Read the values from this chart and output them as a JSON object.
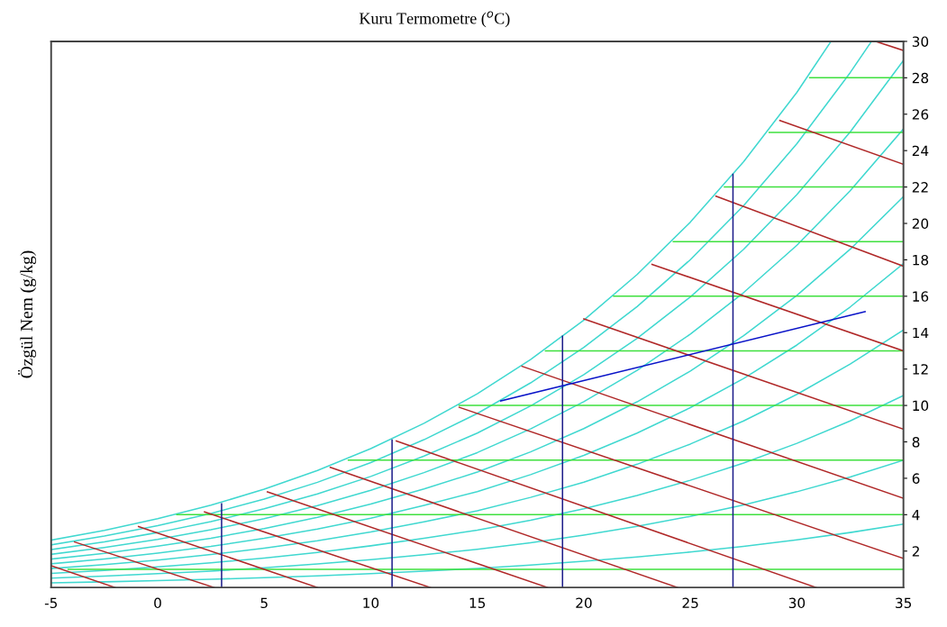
{
  "chart_data": {
    "type": "line",
    "title": "Kuru Termometre ($^{o}$C)",
    "ylabel": "Özgül Nem (g/kg)",
    "xlim": [
      -5,
      35
    ],
    "ylim": [
      0,
      30
    ],
    "xticks": [
      -5,
      0,
      5,
      10,
      15,
      20,
      25,
      30,
      35
    ],
    "yticks": [
      2,
      4,
      6,
      8,
      10,
      12,
      14,
      16,
      18,
      20,
      22,
      24,
      26,
      28,
      30
    ],
    "grid": false,
    "marker": "none",
    "line_style": "solid",
    "series": [
      {
        "color": "#40d8d0",
        "x": [
          -5,
          -2.5,
          0,
          2.5,
          5,
          7.5,
          10,
          12.5,
          15,
          17.5,
          20,
          22.5,
          25,
          27.5,
          30,
          31.6
        ],
        "values": [
          2.6,
          3.14,
          3.78,
          4.52,
          5.4,
          6.43,
          7.63,
          9.02,
          10.64,
          12.52,
          14.69,
          17.19,
          20.07,
          23.39,
          27.2,
          30
        ]
      },
      {
        "color": "#40d8d0",
        "x": [
          -5,
          -2.5,
          0,
          2.5,
          5,
          7.5,
          10,
          12.5,
          15,
          17.5,
          20,
          22.5,
          25,
          27.5,
          30,
          32.5,
          33.5
        ],
        "values": [
          2.34,
          2.83,
          3.4,
          4.07,
          4.86,
          5.78,
          6.86,
          8.12,
          9.56,
          11.24,
          13.19,
          15.43,
          18.01,
          20.98,
          24.38,
          28.28,
          30
        ]
      },
      {
        "color": "#40d8d0",
        "x": [
          -5,
          -2.5,
          0,
          2.5,
          5,
          7.5,
          10,
          12.5,
          15,
          17.5,
          20,
          22.5,
          25,
          27.5,
          30,
          32.5,
          35
        ],
        "values": [
          2.08,
          2.51,
          3.02,
          3.62,
          4.32,
          5.14,
          6.1,
          7.22,
          8.48,
          9.97,
          11.69,
          13.68,
          15.96,
          18.58,
          21.58,
          25.02,
          28.95
        ]
      },
      {
        "color": "#40d8d0",
        "x": [
          -5,
          -2.5,
          0,
          2.5,
          5,
          7.5,
          10,
          12.5,
          15,
          17.5,
          20,
          22.5,
          25,
          27.5,
          30,
          32.5,
          35
        ],
        "values": [
          1.82,
          2.2,
          2.64,
          3.17,
          3.78,
          4.5,
          5.34,
          6.31,
          7.41,
          8.71,
          10.21,
          11.93,
          13.92,
          16.2,
          18.8,
          21.79,
          25.19
        ]
      },
      {
        "color": "#40d8d0",
        "x": [
          -5,
          -2.5,
          0,
          2.5,
          5,
          7.5,
          10,
          12.5,
          15,
          17.5,
          20,
          22.5,
          25,
          27.5,
          30,
          32.5,
          35
        ],
        "values": [
          1.56,
          1.88,
          2.27,
          2.71,
          3.24,
          3.86,
          4.58,
          5.41,
          6.34,
          7.45,
          8.73,
          10.2,
          11.89,
          13.83,
          16.05,
          18.58,
          21.47
        ]
      },
      {
        "color": "#40d8d0",
        "x": [
          -5,
          -2.5,
          0,
          2.5,
          5,
          7.5,
          10,
          12.5,
          15,
          17.5,
          20,
          22.5,
          25,
          27.5,
          30,
          32.5,
          35
        ],
        "values": [
          1.3,
          1.57,
          1.89,
          2.26,
          2.7,
          3.21,
          3.81,
          4.51,
          5.27,
          6.2,
          7.26,
          8.48,
          9.88,
          11.48,
          13.32,
          15.41,
          17.79
        ]
      },
      {
        "color": "#40d8d0",
        "x": [
          -5,
          -2.5,
          0,
          2.5,
          5,
          7.5,
          10,
          12.5,
          15,
          17.5,
          20,
          22.5,
          25,
          27.5,
          30,
          32.5,
          35
        ],
        "values": [
          1.04,
          1.26,
          1.51,
          1.81,
          2.16,
          2.57,
          3.05,
          3.61,
          4.21,
          4.95,
          5.79,
          6.77,
          7.88,
          9.15,
          10.61,
          12.27,
          14.15
        ]
      },
      {
        "color": "#40d8d0",
        "x": [
          -5,
          -2.5,
          0,
          2.5,
          5,
          7.5,
          10,
          12.5,
          15,
          17.5,
          20,
          22.5,
          25,
          27.5,
          30,
          32.5,
          35
        ],
        "values": [
          0.78,
          0.94,
          1.13,
          1.36,
          1.62,
          1.93,
          2.29,
          2.71,
          3.15,
          3.7,
          4.33,
          5.06,
          5.89,
          6.84,
          7.92,
          9.15,
          10.55
        ]
      },
      {
        "color": "#40d8d0",
        "x": [
          -5,
          -2.5,
          0,
          2.5,
          5,
          7.5,
          10,
          12.5,
          15,
          17.5,
          20,
          22.5,
          25,
          27.5,
          30,
          32.5,
          35
        ],
        "values": [
          0.52,
          0.63,
          0.76,
          0.9,
          1.08,
          1.29,
          1.53,
          1.8,
          2.1,
          2.46,
          2.88,
          3.36,
          3.91,
          4.54,
          5.26,
          6.07,
          6.99
        ]
      },
      {
        "color": "#40d8d0",
        "x": [
          -5,
          -2.5,
          0,
          2.5,
          5,
          7.5,
          10,
          12.5,
          15,
          17.5,
          20,
          22.5,
          25,
          27.5,
          30,
          32.5,
          35
        ],
        "values": [
          0.26,
          0.31,
          0.38,
          0.45,
          0.54,
          0.64,
          0.76,
          0.9,
          1.05,
          1.23,
          1.44,
          1.68,
          1.95,
          2.26,
          2.62,
          3.02,
          3.48
        ]
      },
      {
        "color": "#3ee03e",
        "x": [
          -4.2,
          35
        ],
        "values": [
          1,
          1
        ]
      },
      {
        "color": "#3ee03e",
        "x": [
          0.9,
          35
        ],
        "values": [
          4,
          4
        ]
      },
      {
        "color": "#3ee03e",
        "x": [
          8.95,
          35
        ],
        "values": [
          7,
          7
        ]
      },
      {
        "color": "#3ee03e",
        "x": [
          14.15,
          35
        ],
        "values": [
          10,
          10
        ]
      },
      {
        "color": "#3ee03e",
        "x": [
          18.2,
          35
        ],
        "values": [
          13,
          13
        ]
      },
      {
        "color": "#3ee03e",
        "x": [
          21.4,
          35
        ],
        "values": [
          16,
          16
        ]
      },
      {
        "color": "#3ee03e",
        "x": [
          24.2,
          35
        ],
        "values": [
          19,
          19
        ]
      },
      {
        "color": "#3ee03e",
        "x": [
          26.6,
          35
        ],
        "values": [
          22,
          22
        ]
      },
      {
        "color": "#3ee03e",
        "x": [
          28.7,
          35
        ],
        "values": [
          25,
          25
        ]
      },
      {
        "color": "#3ee03e",
        "x": [
          30.6,
          35
        ],
        "values": [
          28,
          28
        ]
      },
      {
        "color": "#b02828",
        "x": [
          -5,
          -2
        ],
        "values": [
          1.2,
          0
        ]
      },
      {
        "color": "#b02828",
        "x": [
          -3.9,
          2.65
        ],
        "values": [
          2.5,
          0
        ]
      },
      {
        "color": "#b02828",
        "x": [
          -0.9,
          7.5
        ],
        "values": [
          3.35,
          0
        ]
      },
      {
        "color": "#b02828",
        "x": [
          2.2,
          12.8
        ],
        "values": [
          4.15,
          0
        ]
      },
      {
        "color": "#b02828",
        "x": [
          5.15,
          18.3
        ],
        "values": [
          5.25,
          0
        ]
      },
      {
        "color": "#b02828",
        "x": [
          8.1,
          24.4
        ],
        "values": [
          6.6,
          0
        ]
      },
      {
        "color": "#b02828",
        "x": [
          11.2,
          30.9
        ],
        "values": [
          8.05,
          0
        ]
      },
      {
        "color": "#b02828",
        "x": [
          14.15,
          35
        ],
        "values": [
          9.9,
          1.6
        ]
      },
      {
        "color": "#b02828",
        "x": [
          17.1,
          35
        ],
        "values": [
          12.15,
          4.9
        ]
      },
      {
        "color": "#b02828",
        "x": [
          20,
          35
        ],
        "values": [
          14.75,
          8.7
        ]
      },
      {
        "color": "#b02828",
        "x": [
          23.2,
          35
        ],
        "values": [
          17.75,
          13.0
        ]
      },
      {
        "color": "#b02828",
        "x": [
          26.2,
          35
        ],
        "values": [
          21.5,
          17.65
        ]
      },
      {
        "color": "#b02828",
        "x": [
          29.2,
          35
        ],
        "values": [
          25.65,
          23.25
        ]
      },
      {
        "color": "#b02828",
        "x": [
          33.7,
          35
        ],
        "values": [
          30,
          29.5
        ]
      },
      {
        "color": "#1c1c8a",
        "x": [
          3,
          3
        ],
        "values": [
          0,
          4.6
        ]
      },
      {
        "color": "#1c1c8a",
        "x": [
          11,
          11
        ],
        "values": [
          0,
          8.1
        ]
      },
      {
        "color": "#1c1c8a",
        "x": [
          19,
          19
        ],
        "values": [
          0,
          13.8
        ]
      },
      {
        "color": "#1c1c8a",
        "x": [
          27,
          27
        ],
        "values": [
          0,
          22.7
        ]
      },
      {
        "color": "#0a14c8",
        "x": [
          16.1,
          33.2
        ],
        "values": [
          10.25,
          15.15
        ]
      }
    ]
  }
}
